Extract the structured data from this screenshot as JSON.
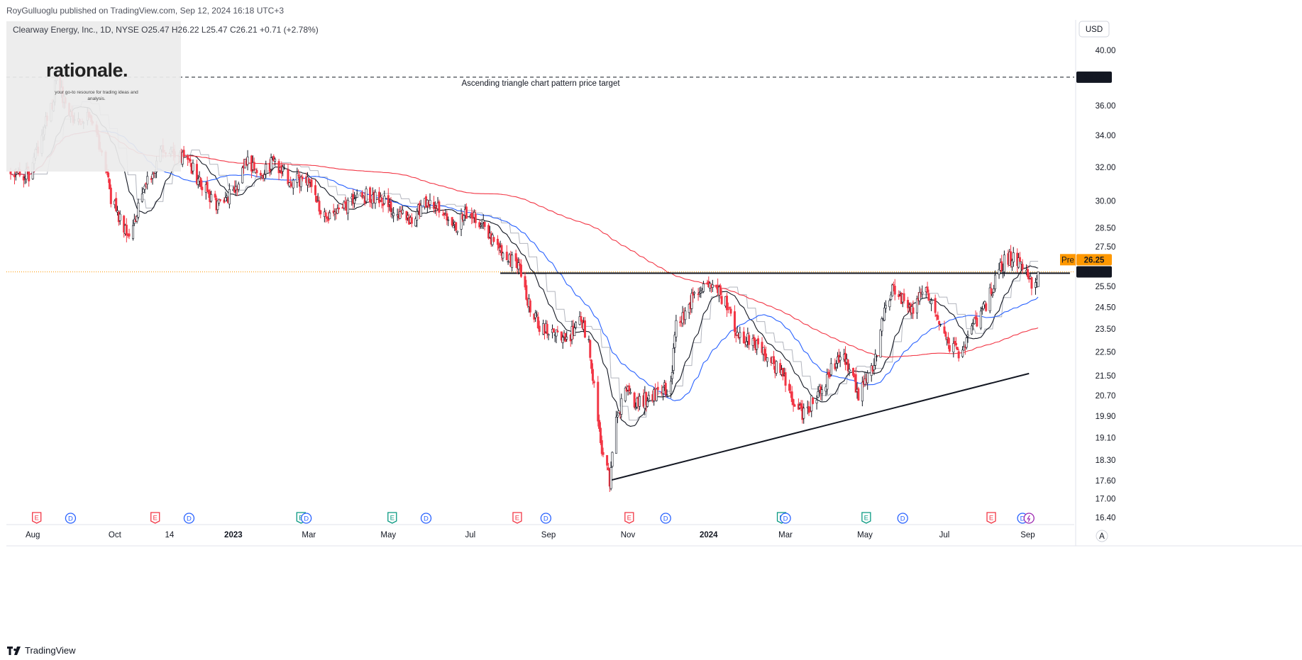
{
  "header": {
    "publisher_text": "RoyGulluoglu published on TradingView.com, Sep 12, 2024 16:18 UTC+3"
  },
  "legend": {
    "text": "Clearway Energy, Inc., 1D, NYSE  O25.47  H26.22  L25.47  C26.21  +0.71 (+2.78%)"
  },
  "logo": {
    "wordmark": "rationale.",
    "tagline": "your go-to resource for trading ideas and analysis."
  },
  "currency_button": "USD",
  "footer": {
    "brand": "TradingView"
  },
  "auto_button": "A",
  "colors": {
    "up": "#ffffff",
    "down": "#f23645",
    "candle_outline": "#131722",
    "ma20": "#131722",
    "ma50": "#2962ff",
    "ma200": "#f23645",
    "step_line": "#b2b5be",
    "pre_badge": "#ff9800",
    "price_badge": "#131722",
    "target_badge": "#131722",
    "earnings": "#f23645",
    "earnings_positive": "#089981",
    "dividend": "#2962ff"
  },
  "chart_data": {
    "type": "candlestick",
    "symbol": "Clearway Energy, Inc.",
    "timeframe": "1D",
    "exchange": "NYSE",
    "ohlc_last": {
      "open": 25.47,
      "high": 26.22,
      "low": 25.47,
      "close": 26.21,
      "change": 0.71,
      "change_pct": 2.78
    },
    "y_axis": {
      "scale": "log",
      "ticks": [
        40.0,
        38.0,
        36.0,
        34.0,
        32.0,
        30.0,
        28.5,
        27.5,
        26.25,
        26.21,
        25.5,
        24.5,
        23.5,
        22.5,
        21.5,
        20.7,
        19.9,
        19.1,
        18.3,
        17.6,
        17.0,
        16.4
      ],
      "tick_labels": [
        "40.00",
        "38.00",
        "36.00",
        "34.00",
        "32.00",
        "30.00",
        "28.50",
        "27.50",
        "26.25",
        "26.21",
        "25.50",
        "24.50",
        "23.50",
        "22.50",
        "21.50",
        "20.70",
        "19.90",
        "19.10",
        "18.30",
        "17.60",
        "17.00",
        "16.40"
      ],
      "visible_labels": [
        "40.00",
        "36.00",
        "34.00",
        "32.00",
        "30.00",
        "28.50",
        "27.50",
        "25.50",
        "24.50",
        "23.50",
        "22.50",
        "21.50",
        "20.70",
        "19.90",
        "19.10",
        "18.30",
        "17.60",
        "17.00",
        "16.40"
      ]
    },
    "x_axis": {
      "ticks": [
        "Aug",
        "Oct",
        "14",
        "2023",
        "Mar",
        "May",
        "Jul",
        "Sep",
        "Nov",
        "2024",
        "Mar",
        "May",
        "Jul",
        "Sep"
      ],
      "bold": [
        "2023",
        "2024"
      ],
      "tick_dates": [
        "2022-08-01",
        "2022-10-03",
        "2022-11-14",
        "2023-01-02",
        "2023-03-01",
        "2023-05-01",
        "2023-07-03",
        "2023-09-01",
        "2023-11-01",
        "2024-01-02",
        "2024-03-01",
        "2024-05-01",
        "2024-07-01",
        "2024-09-03"
      ],
      "range": [
        "2022-07-15",
        "2024-09-30"
      ]
    },
    "price_path": [
      [
        "2022-07-15",
        31.6
      ],
      [
        "2022-07-29",
        31.5
      ],
      [
        "2022-08-05",
        33.2
      ],
      [
        "2022-08-10",
        34.8
      ],
      [
        "2022-08-16",
        36.2
      ],
      [
        "2022-08-19",
        37.8
      ],
      [
        "2022-08-26",
        36.2
      ],
      [
        "2022-09-02",
        35.0
      ],
      [
        "2022-09-09",
        35.3
      ],
      [
        "2022-09-16",
        34.8
      ],
      [
        "2022-09-23",
        33.0
      ],
      [
        "2022-09-30",
        30.2
      ],
      [
        "2022-10-07",
        29.0
      ],
      [
        "2022-10-14",
        28.2
      ],
      [
        "2022-10-21",
        29.5
      ],
      [
        "2022-10-31",
        31.7
      ],
      [
        "2022-11-08",
        33.0
      ],
      [
        "2022-11-18",
        32.8
      ],
      [
        "2022-11-30",
        32.2
      ],
      [
        "2022-12-09",
        30.8
      ],
      [
        "2022-12-20",
        29.8
      ],
      [
        "2023-01-03",
        30.6
      ],
      [
        "2023-01-12",
        32.5
      ],
      [
        "2023-01-24",
        31.6
      ],
      [
        "2023-02-03",
        32.4
      ],
      [
        "2023-02-15",
        31.0
      ],
      [
        "2023-02-28",
        31.5
      ],
      [
        "2023-03-10",
        29.3
      ],
      [
        "2023-03-20",
        29.0
      ],
      [
        "2023-03-31",
        29.8
      ],
      [
        "2023-04-12",
        30.3
      ],
      [
        "2023-04-25",
        30.2
      ],
      [
        "2023-05-05",
        29.4
      ],
      [
        "2023-05-17",
        29.0
      ],
      [
        "2023-05-31",
        30.0
      ],
      [
        "2023-06-09",
        29.5
      ],
      [
        "2023-06-20",
        28.4
      ],
      [
        "2023-06-30",
        29.4
      ],
      [
        "2023-07-10",
        28.9
      ],
      [
        "2023-07-21",
        27.8
      ],
      [
        "2023-08-01",
        26.9
      ],
      [
        "2023-08-11",
        26.2
      ],
      [
        "2023-08-18",
        24.4
      ],
      [
        "2023-08-25",
        23.6
      ],
      [
        "2023-09-05",
        23.5
      ],
      [
        "2023-09-15",
        23.0
      ],
      [
        "2023-09-25",
        23.8
      ],
      [
        "2023-10-02",
        23.0
      ],
      [
        "2023-10-06",
        21.0
      ],
      [
        "2023-10-12",
        18.5
      ],
      [
        "2023-10-18",
        17.6
      ],
      [
        "2023-10-23",
        19.8
      ],
      [
        "2023-10-31",
        20.9
      ],
      [
        "2023-11-08",
        20.4
      ],
      [
        "2023-11-17",
        20.6
      ],
      [
        "2023-11-27",
        20.9
      ],
      [
        "2023-12-04",
        21.0
      ],
      [
        "2023-12-08",
        23.8
      ],
      [
        "2023-12-15",
        24.2
      ],
      [
        "2023-12-22",
        25.2
      ],
      [
        "2024-01-02",
        25.6
      ],
      [
        "2024-01-09",
        25.3
      ],
      [
        "2024-01-16",
        24.6
      ],
      [
        "2024-01-25",
        23.2
      ],
      [
        "2024-02-05",
        23.0
      ],
      [
        "2024-02-15",
        22.3
      ],
      [
        "2024-02-26",
        21.6
      ],
      [
        "2024-03-07",
        20.5
      ],
      [
        "2024-03-14",
        20.0
      ],
      [
        "2024-03-21",
        20.4
      ],
      [
        "2024-03-28",
        20.9
      ],
      [
        "2024-04-05",
        21.7
      ],
      [
        "2024-04-12",
        22.3
      ],
      [
        "2024-04-19",
        21.9
      ],
      [
        "2024-04-26",
        20.7
      ],
      [
        "2024-05-03",
        21.4
      ],
      [
        "2024-05-10",
        22.4
      ],
      [
        "2024-05-17",
        24.8
      ],
      [
        "2024-05-24",
        25.4
      ],
      [
        "2024-05-31",
        24.8
      ],
      [
        "2024-06-07",
        24.3
      ],
      [
        "2024-06-14",
        25.3
      ],
      [
        "2024-06-21",
        24.9
      ],
      [
        "2024-06-28",
        23.6
      ],
      [
        "2024-07-05",
        22.8
      ],
      [
        "2024-07-12",
        22.5
      ],
      [
        "2024-07-19",
        23.1
      ],
      [
        "2024-07-26",
        23.9
      ],
      [
        "2024-08-02",
        24.6
      ],
      [
        "2024-08-09",
        25.7
      ],
      [
        "2024-08-16",
        26.8
      ],
      [
        "2024-08-23",
        26.9
      ],
      [
        "2024-08-30",
        26.6
      ],
      [
        "2024-09-06",
        25.5
      ],
      [
        "2024-09-11",
        26.21
      ]
    ],
    "moving_averages": [
      {
        "period": 20,
        "color": "#131722"
      },
      {
        "period": 50,
        "color": "#2962ff"
      },
      {
        "period": 200,
        "color": "#f23645"
      }
    ],
    "annotations": [
      {
        "type": "horizontal_dashed",
        "price": 38.0,
        "label": "Ascending triangle chart pattern price target",
        "badge": "38.00"
      },
      {
        "type": "horizontal_solid",
        "price": 26.25,
        "from": "2023-07-26",
        "to": "2024-09-30",
        "note": "resistance"
      },
      {
        "type": "trendline",
        "from": [
          "2023-10-18",
          17.6
        ],
        "to": [
          "2024-09-04",
          21.5
        ],
        "note": "ascending support"
      },
      {
        "type": "horizontal_dotted",
        "price": 26.21,
        "note": "last price"
      }
    ],
    "price_badges": [
      {
        "label": "Pre",
        "value": "26.25",
        "price": 26.25
      },
      {
        "value": "26.21",
        "price": 26.21
      }
    ],
    "events": [
      {
        "date": "2022-08-04",
        "kind": "earnings",
        "label": "E"
      },
      {
        "date": "2022-08-30",
        "kind": "dividend",
        "label": "D"
      },
      {
        "date": "2022-11-03",
        "kind": "earnings",
        "label": "E"
      },
      {
        "date": "2022-11-29",
        "kind": "dividend",
        "label": "D"
      },
      {
        "date": "2023-02-23",
        "kind": "earnings_positive",
        "label": "E"
      },
      {
        "date": "2023-02-27",
        "kind": "dividend",
        "label": "D"
      },
      {
        "date": "2023-05-04",
        "kind": "earnings_positive",
        "label": "E"
      },
      {
        "date": "2023-05-30",
        "kind": "dividend",
        "label": "D"
      },
      {
        "date": "2023-08-08",
        "kind": "earnings",
        "label": "E"
      },
      {
        "date": "2023-08-30",
        "kind": "dividend",
        "label": "D"
      },
      {
        "date": "2023-11-02",
        "kind": "earnings",
        "label": "E"
      },
      {
        "date": "2023-11-30",
        "kind": "dividend",
        "label": "D"
      },
      {
        "date": "2024-02-27",
        "kind": "earnings_positive",
        "label": "E"
      },
      {
        "date": "2024-03-01",
        "kind": "dividend",
        "label": "D"
      },
      {
        "date": "2024-05-02",
        "kind": "earnings_positive",
        "label": "E"
      },
      {
        "date": "2024-05-30",
        "kind": "dividend",
        "label": "D"
      },
      {
        "date": "2024-08-06",
        "kind": "earnings",
        "label": "E"
      },
      {
        "date": "2024-08-30",
        "kind": "dividend",
        "label": "D"
      },
      {
        "date": "2024-09-04",
        "kind": "split",
        "label": ""
      }
    ]
  }
}
